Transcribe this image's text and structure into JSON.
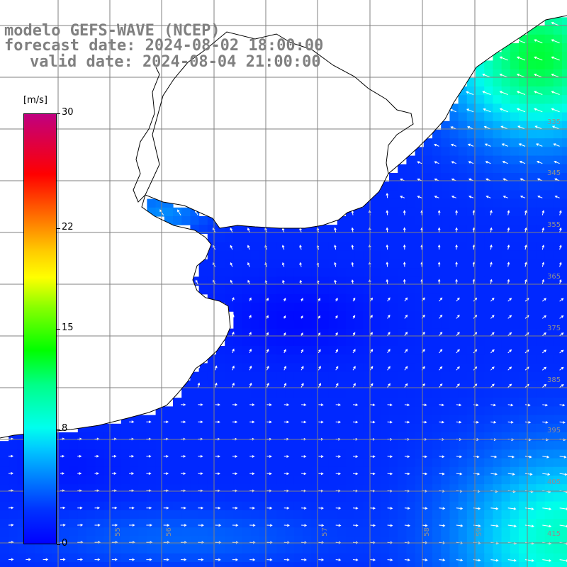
{
  "title": {
    "line1": "modelo GEFS-WAVE (NCEP)",
    "line2": "forecast date: 2024-08-02 18:00:00",
    "line3": "valid date: 2024-08-04 21:00:00"
  },
  "colorbar": {
    "unit": "[m/s]",
    "ticks": [
      {
        "label": "30",
        "value": 30
      },
      {
        "label": "22",
        "value": 22
      },
      {
        "label": "15",
        "value": 15
      },
      {
        "label": "8",
        "value": 8
      },
      {
        "label": "0",
        "value": 0
      }
    ]
  },
  "grid_labels": {
    "right": [
      "335",
      "345",
      "355",
      "365",
      "375",
      "385",
      "395",
      "405",
      "415"
    ],
    "bottom": [
      "55",
      "56",
      "57",
      "58",
      "59"
    ]
  },
  "colors": {
    "land": "#ffffff",
    "coast": "#000000",
    "grid": "#808080",
    "arrow": "#ffffff",
    "text": "#808080"
  }
}
